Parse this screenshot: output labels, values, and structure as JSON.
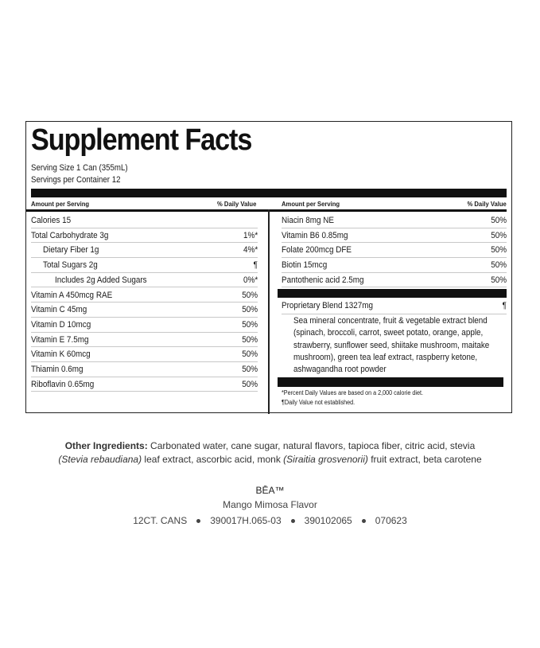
{
  "title": "Supplement Facts",
  "serving_size": "Serving Size 1 Can (355mL)",
  "servings_per_container": "Servings per Container 12",
  "headers": {
    "amount": "Amount per Serving",
    "dv": "% Daily Value"
  },
  "left_rows": [
    {
      "label": "Calories 15",
      "dv": "",
      "indent": 0
    },
    {
      "label": "Total Carbohydrate 3g",
      "dv": "1%*",
      "indent": 0
    },
    {
      "label": "Dietary Fiber 1g",
      "dv": "4%*",
      "indent": 1
    },
    {
      "label": "Total Sugars 2g",
      "dv": "¶",
      "indent": 1
    },
    {
      "label": "Includes 2g Added Sugars",
      "dv": "0%*",
      "indent": 2
    },
    {
      "label": "Vitamin A 450mcg RAE",
      "dv": "50%",
      "indent": 0
    },
    {
      "label": "Vitamin C 45mg",
      "dv": "50%",
      "indent": 0
    },
    {
      "label": "Vitamin D 10mcg",
      "dv": "50%",
      "indent": 0
    },
    {
      "label": "Vitamin E 7.5mg",
      "dv": "50%",
      "indent": 0
    },
    {
      "label": "Vitamin K 60mcg",
      "dv": "50%",
      "indent": 0
    },
    {
      "label": "Thiamin 0.6mg",
      "dv": "50%",
      "indent": 0
    },
    {
      "label": "Riboflavin 0.65mg",
      "dv": "50%",
      "indent": 0
    }
  ],
  "right_rows": [
    {
      "label": "Niacin 8mg NE",
      "dv": "50%"
    },
    {
      "label": "Vitamin B6 0.85mg",
      "dv": "50%"
    },
    {
      "label": "Folate 200mcg DFE",
      "dv": "50%"
    },
    {
      "label": "Biotin 15mcg",
      "dv": "50%"
    },
    {
      "label": "Pantothenic acid 2.5mg",
      "dv": "50%"
    }
  ],
  "blend": {
    "label": "Proprietary Blend 1327mg",
    "dv": "¶",
    "ingredients": "Sea mineral concentrate, fruit & vegetable extract blend (spinach, broccoli, carrot, sweet potato, orange, apple, strawberry, sunflower seed, shiitake mushroom, maitake mushroom), green tea leaf extract, raspberry ketone, ashwagandha root powder"
  },
  "footnotes": [
    "*Percent Daily Values are based on a 2,000 calorie diet.",
    "¶Daily Value not established."
  ],
  "other_ingredients": {
    "label": "Other Ingredients:",
    "text1": " Carbonated water, cane sugar, natural flavors, tapioca fiber, citric acid, stevia",
    "italic1": "(Stevia rebaudiana)",
    "text2": " leaf extract, ascorbic acid, monk ",
    "italic2": "(Siraitia grosvenorii)",
    "text3": " fruit extract, beta carotene"
  },
  "brand": "BĒA™",
  "flavor": "Mango Mimosa Flavor",
  "codes": [
    "12CT. CANS",
    "390017H.065-03",
    "390102065",
    "070623"
  ]
}
